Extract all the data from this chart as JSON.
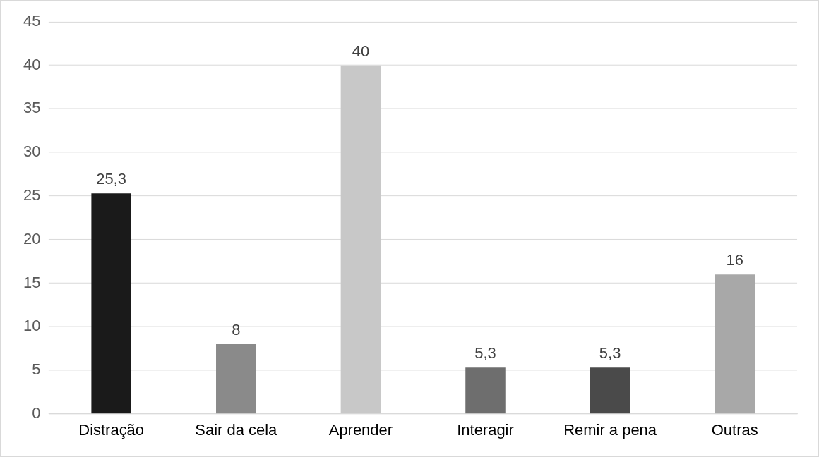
{
  "chart_data": {
    "type": "bar",
    "categories": [
      "Distração",
      "Sair da cela",
      "Aprender",
      "Interagir",
      "Remir a pena",
      "Outras"
    ],
    "values": [
      25.3,
      8,
      40,
      5.3,
      5.3,
      16
    ],
    "value_labels": [
      "25,3",
      "8",
      "40",
      "5,3",
      "5,3",
      "16"
    ],
    "colors": [
      "#1a1a1a",
      "#8a8a8a",
      "#c8c8c8",
      "#6e6e6e",
      "#4a4a4a",
      "#a8a8a8"
    ],
    "ylim": [
      0,
      45
    ],
    "yticks": [
      0,
      5,
      10,
      15,
      20,
      25,
      30,
      35,
      40,
      45
    ],
    "grid": "y",
    "legend": false
  }
}
